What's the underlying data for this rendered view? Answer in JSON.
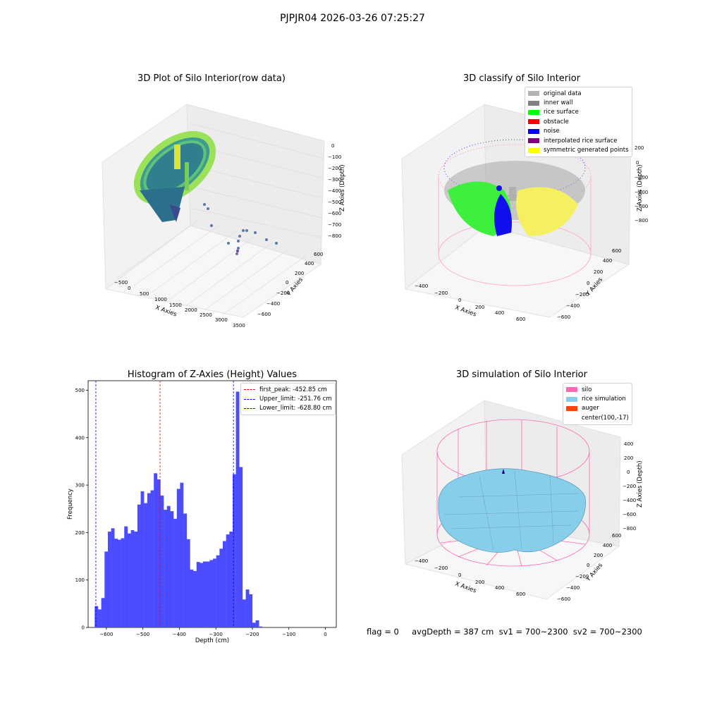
{
  "suptitle": "PJPJR04 2026-03-26 07:25:27",
  "plot1": {
    "title": "3D Plot of Silo Interior(row data)",
    "xlabel": "X Axies",
    "ylabel": "Y Axies",
    "zlabel": "Z Axies (Depth)",
    "xticks": [
      "−500",
      "0",
      "500",
      "1000",
      "1500",
      "2000",
      "2500",
      "3000",
      "3500"
    ],
    "yticks": [
      "−600",
      "−400",
      "−200",
      "0",
      "200",
      "400",
      "600"
    ],
    "zticks": [
      "0",
      "−100",
      "−200",
      "−300",
      "−400",
      "−500",
      "−600",
      "−700",
      "−800"
    ]
  },
  "plot2": {
    "title": "3D classify of Silo Interior",
    "xlabel": "X Axies",
    "ylabel": "Y Axies",
    "zlabel": "Z Axies (Depth)",
    "xticks": [
      "−400",
      "−200",
      "0",
      "200",
      "400",
      "600"
    ],
    "yticks": [
      "−600",
      "−400",
      "−200",
      "0",
      "200",
      "400",
      "600"
    ],
    "zticks": [
      "200",
      "0",
      "−200",
      "−400",
      "−600",
      "−800"
    ],
    "legend": [
      {
        "label": "original data",
        "color": "#b3b3b3"
      },
      {
        "label": "inner wall",
        "color": "#808080"
      },
      {
        "label": "rice surface",
        "color": "#00ff00"
      },
      {
        "label": "obstacle",
        "color": "#ff0000"
      },
      {
        "label": "noise",
        "color": "#0000ff"
      },
      {
        "label": "interpolated rice surface",
        "color": "#800080"
      },
      {
        "label": "symmetric generated points",
        "color": "#ffff00"
      }
    ]
  },
  "plot4": {
    "title": "3D simulation of Silo Interior",
    "xlabel": "X Axies",
    "ylabel": "Y Axies",
    "zlabel": "Z Axies (Depth)",
    "xticks": [
      "−400",
      "−200",
      "0",
      "200",
      "400",
      "600"
    ],
    "yticks": [
      "−600",
      "−400",
      "−200",
      "0",
      "200",
      "400",
      "600"
    ],
    "zticks": [
      "400",
      "200",
      "0",
      "−200",
      "−400",
      "−600",
      "−800"
    ],
    "legend": [
      {
        "label": "silo",
        "color": "#ff69b4"
      },
      {
        "label": "rice simulation",
        "color": "#87ceeb"
      },
      {
        "label": "auger",
        "color": "#ff4500"
      },
      {
        "label": "center(100,-17)",
        "color": ""
      }
    ]
  },
  "status": "flag = 0     avgDepth = 387 cm  sv1 = 700~2300  sv2 = 700~2300",
  "chart_data": [
    {
      "type": "bar",
      "title": "Histogram of Z-Axies (Height) Values",
      "xlabel": "Depth (cm)",
      "ylabel": "Frequency",
      "xlim": [
        -650,
        30
      ],
      "ylim": [
        0,
        520
      ],
      "bin_start": -632,
      "bin_width": 9.0,
      "values": [
        45,
        38,
        62,
        160,
        202,
        209,
        187,
        185,
        188,
        213,
        198,
        205,
        202,
        259,
        287,
        262,
        283,
        289,
        325,
        312,
        278,
        248,
        256,
        245,
        229,
        292,
        305,
        240,
        186,
        122,
        119,
        138,
        136,
        139,
        139,
        142,
        145,
        152,
        166,
        182,
        196,
        202,
        323,
        497,
        338,
        59,
        80,
        70,
        10,
        15,
        2
      ],
      "xticks": [
        "−600",
        "−500",
        "−400",
        "−300",
        "−200",
        "−100",
        "0"
      ],
      "yticks": [
        "0",
        "100",
        "200",
        "300",
        "400",
        "500"
      ],
      "bar_color": "#4b4bff",
      "vlines": [
        {
          "label": "first_peak: -452.85 cm",
          "x": -452.85,
          "color": "#ff0000"
        },
        {
          "label": "Upper_limit: -251.76 cm",
          "x": -251.76,
          "color": "#0000ff"
        },
        {
          "label": "Lower_limit: -628.80 cm",
          "x": -628.8,
          "color": "#0000ff"
        }
      ],
      "legend_position": "top-right"
    }
  ]
}
